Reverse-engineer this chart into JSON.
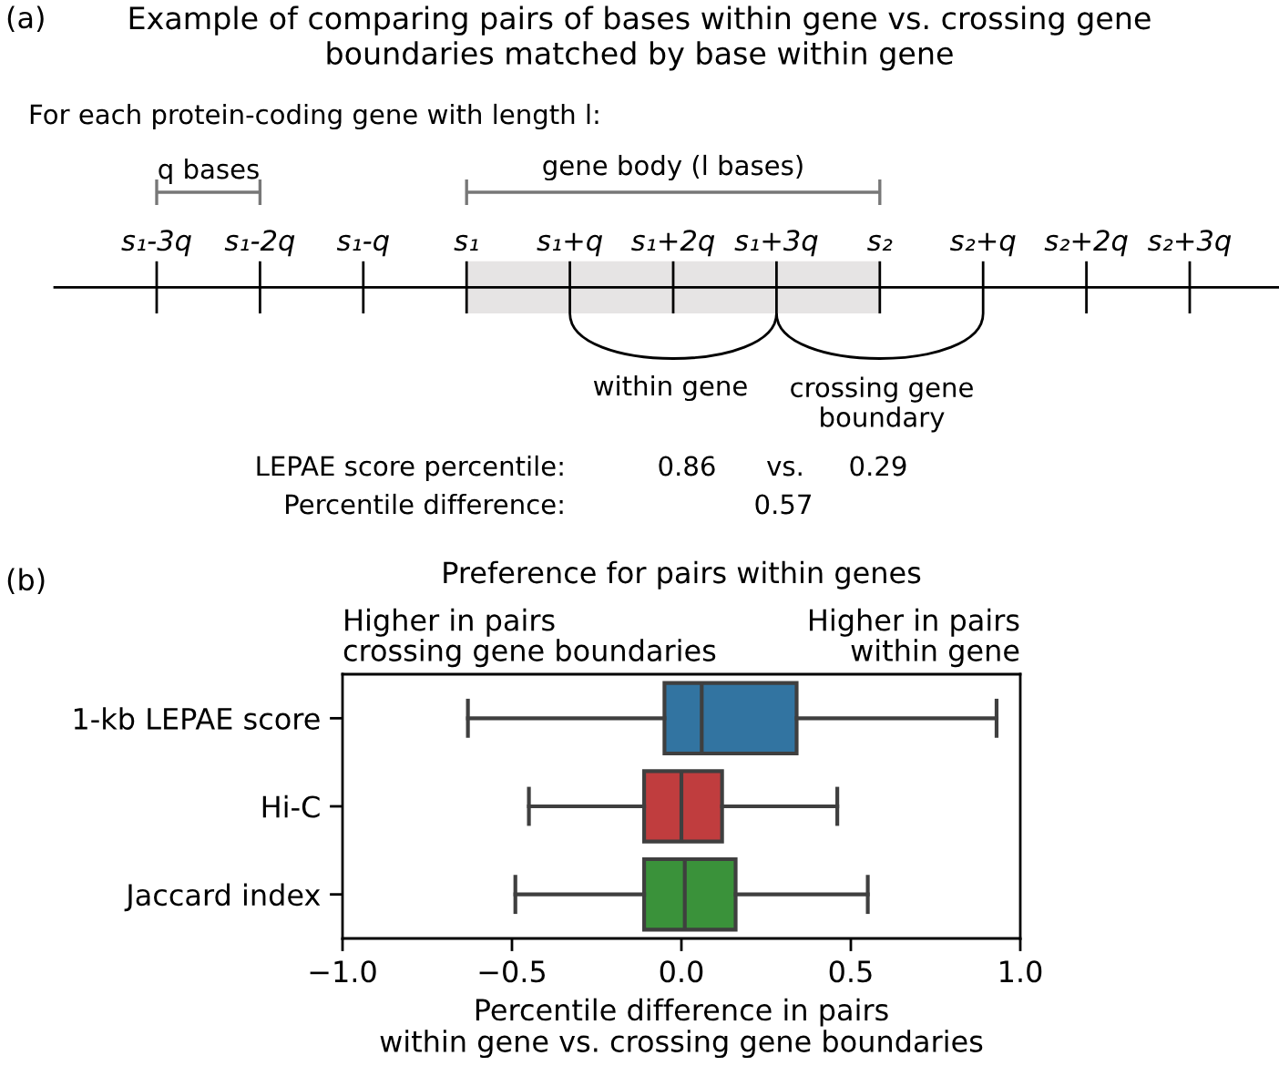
{
  "chart_data": [
    {
      "type": "other",
      "title": "Example of comparing pairs of bases within gene vs. crossing gene\nboundaries matched by base within gene",
      "categories": [
        "s₁-3q",
        "s₁-2q",
        "s₁-q",
        "s₁",
        "s₁+q",
        "s₁+2q",
        "s₁+3q",
        "s₂",
        "s₂+q",
        "s₂+2q",
        "s₂+3q"
      ],
      "annotations": [
        "(a)",
        "For each protein-coding gene with length l:",
        "q bases",
        "gene body (l bases)",
        "within gene",
        "crossing gene\nboundary",
        "LEPAE score percentile:",
        "0.86",
        "vs.",
        "0.29",
        "Percentile difference:",
        "0.57"
      ]
    },
    {
      "type": "box",
      "title": "Preference for pairs within genes",
      "xlabel": "Percentile difference in pairs\nwithin gene vs. crossing gene boundaries",
      "orientation": "horizontal",
      "categories": [
        "1-kb LEPAE score",
        "Hi-C",
        "Jaccard index"
      ],
      "boxes": [
        {
          "low": -0.63,
          "q1": -0.05,
          "median": 0.06,
          "q3": 0.34,
          "high": 0.93
        },
        {
          "low": -0.45,
          "q1": -0.11,
          "median": 0.0,
          "q3": 0.12,
          "high": 0.46
        },
        {
          "low": -0.49,
          "q1": -0.11,
          "median": 0.01,
          "q3": 0.16,
          "high": 0.55
        }
      ],
      "colors": [
        "#3274a1",
        "#c03d3e",
        "#3a923a"
      ],
      "xlim": [
        -1.0,
        1.0
      ],
      "xticks": [
        {
          "value": -1.0,
          "label": "−1.0"
        },
        {
          "value": -0.5,
          "label": "−0.5"
        },
        {
          "value": 0.0,
          "label": "0.0"
        },
        {
          "value": 0.5,
          "label": "0.5"
        },
        {
          "value": 1.0,
          "label": "1.0"
        }
      ],
      "annotations": [
        "(b)",
        "Higher in pairs\ncrossing gene boundaries",
        "Higher in pairs\nwithin gene"
      ]
    }
  ]
}
